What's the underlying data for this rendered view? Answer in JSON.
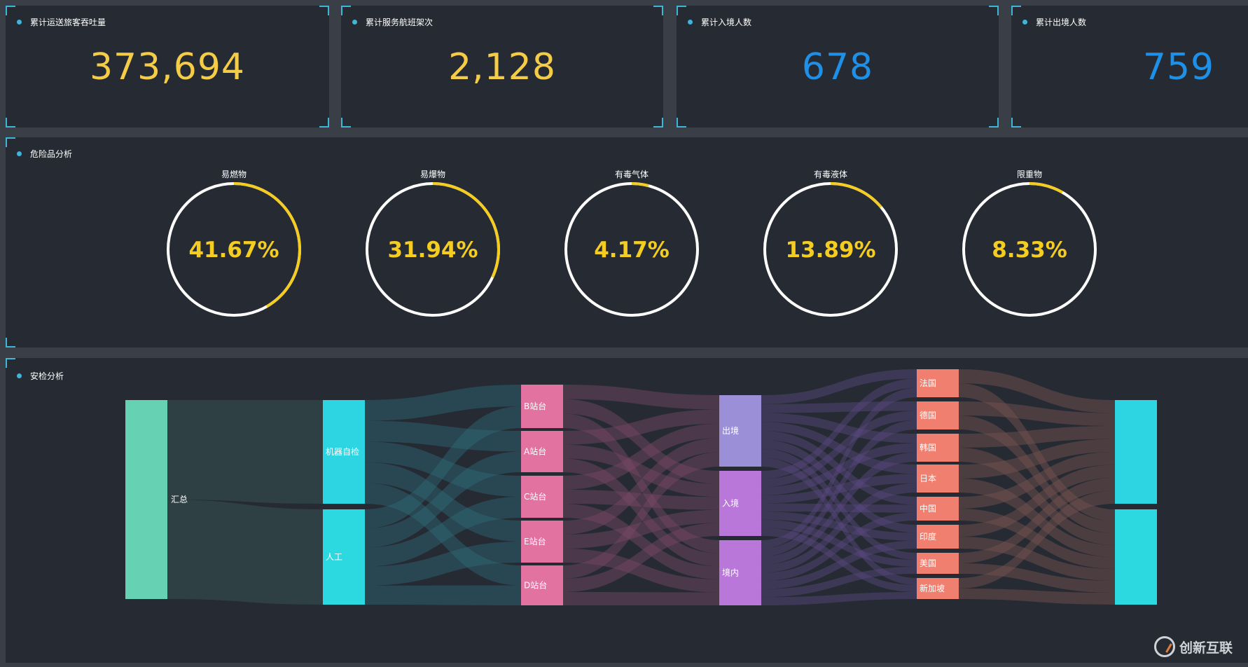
{
  "stats": [
    {
      "title": "累计运送旅客吞吐量",
      "value": "373,694",
      "color": "#f5cc47"
    },
    {
      "title": "累计服务航班架次",
      "value": "2,128",
      "color": "#f5cc47"
    },
    {
      "title": "累计入境人数",
      "value": "678",
      "color": "#1e90e8"
    },
    {
      "title": "累计出境人数",
      "value": "759",
      "color": "#1e90e8"
    }
  ],
  "danger": {
    "title": "危险品分析",
    "items": [
      {
        "name": "易燃物",
        "percent": 41.67,
        "label": "41.67%"
      },
      {
        "name": "易爆物",
        "percent": 31.94,
        "label": "31.94%"
      },
      {
        "name": "有毒气体",
        "percent": 4.17,
        "label": "4.17%"
      },
      {
        "name": "有毒液体",
        "percent": 13.89,
        "label": "13.89%"
      },
      {
        "name": "限重物",
        "percent": 8.33,
        "label": "8.33%"
      }
    ],
    "ring_color": "#ffffff",
    "arc_color": "#f5cc20"
  },
  "security": {
    "title": "安检分析",
    "columns": [
      {
        "nodes": [
          {
            "label": "汇总",
            "color": "#66d2b3"
          }
        ]
      },
      {
        "nodes": [
          {
            "label": "机器自检",
            "color": "#2dd4e2"
          },
          {
            "label": "人工",
            "color": "#2dd9e0"
          }
        ]
      },
      {
        "nodes": [
          {
            "label": "B站台",
            "color": "#e273a1"
          },
          {
            "label": "A站台",
            "color": "#e273a1"
          },
          {
            "label": "C站台",
            "color": "#e273a1"
          },
          {
            "label": "E站台",
            "color": "#e273a1"
          },
          {
            "label": "D站台",
            "color": "#e273a1"
          }
        ]
      },
      {
        "nodes": [
          {
            "label": "出境",
            "color": "#9b8fd8"
          },
          {
            "label": "入境",
            "color": "#b978d9"
          },
          {
            "label": "境内",
            "color": "#b978d9"
          }
        ]
      },
      {
        "nodes": [
          {
            "label": "法国",
            "color": "#f07f70"
          },
          {
            "label": "德国",
            "color": "#f07f70"
          },
          {
            "label": "韩国",
            "color": "#f07f70"
          },
          {
            "label": "日本",
            "color": "#f07f70"
          },
          {
            "label": "中国",
            "color": "#f07f70"
          },
          {
            "label": "印度",
            "color": "#f07f70"
          },
          {
            "label": "美国",
            "color": "#f07f70"
          },
          {
            "label": "新加坡",
            "color": "#f07f70"
          }
        ]
      },
      {
        "nodes": [
          {
            "label": "",
            "color": "#2dd4e2"
          },
          {
            "label": "",
            "color": "#2dd9e0"
          }
        ]
      }
    ]
  },
  "watermark": {
    "text": "创新互联"
  }
}
